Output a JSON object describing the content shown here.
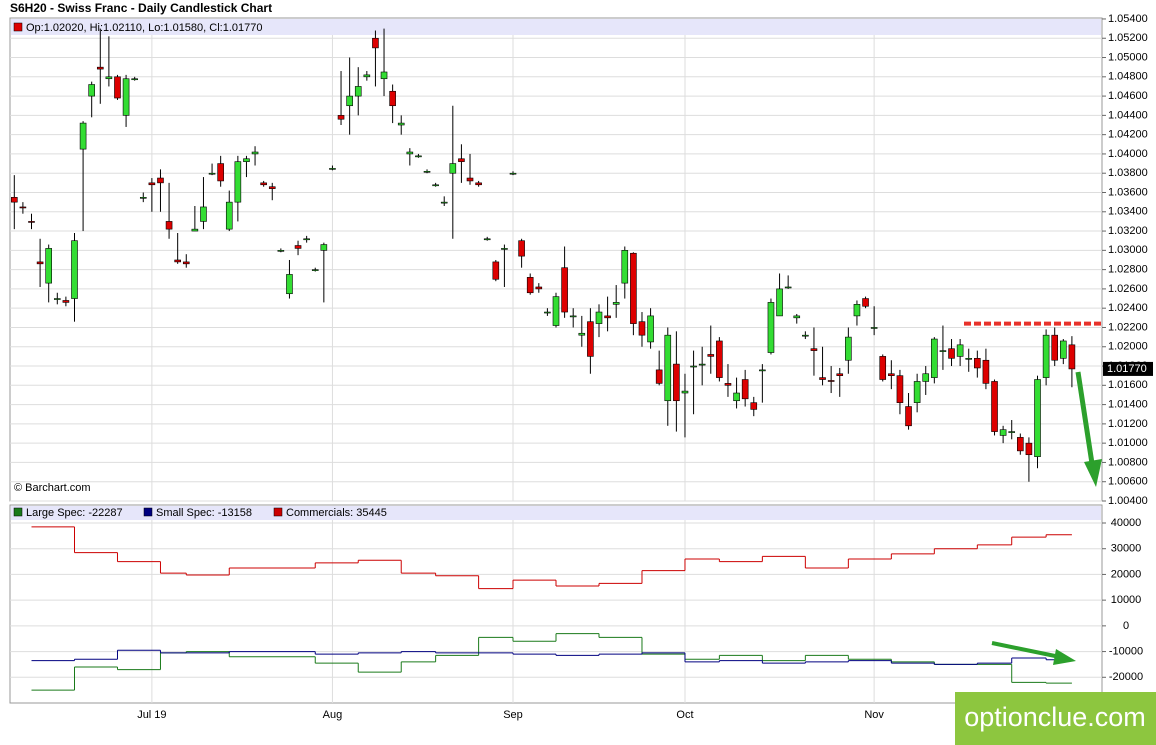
{
  "chart_data": [
    {
      "type": "candlestick",
      "title": "S6H20 - Swiss Franc - Daily Candlestick Chart",
      "legend": "Op:1.02020, Hi:1.02110, Lo:1.01580, Cl:1.01770",
      "credit": "© Barchart.com",
      "watermark": "optionclue.com",
      "last_price_label": "1.01770",
      "resistance": 1.0224,
      "up_color": "#33dd33",
      "down_color": "#dd0000",
      "xlim": [
        -0.5,
        126.5
      ],
      "xticks": [
        {
          "value": 16,
          "label": "Jul 19"
        },
        {
          "value": 37,
          "label": "Aug"
        },
        {
          "value": 58,
          "label": "Sep"
        },
        {
          "value": 78,
          "label": "Oct"
        },
        {
          "value": 100,
          "label": "Nov"
        }
      ],
      "ylim": [
        1.004,
        1.0541
      ],
      "yticks": [
        {
          "value": 1.004,
          "label": "1.00400"
        },
        {
          "value": 1.006,
          "label": "1.00600"
        },
        {
          "value": 1.008,
          "label": "1.00800"
        },
        {
          "value": 1.01,
          "label": "1.01000"
        },
        {
          "value": 1.012,
          "label": "1.01200"
        },
        {
          "value": 1.014,
          "label": "1.01400"
        },
        {
          "value": 1.016,
          "label": "1.01600"
        },
        {
          "value": 1.018,
          "label": "1.01800"
        },
        {
          "value": 1.02,
          "label": "1.02000"
        },
        {
          "value": 1.022,
          "label": "1.02200"
        },
        {
          "value": 1.024,
          "label": "1.02400"
        },
        {
          "value": 1.026,
          "label": "1.02600"
        },
        {
          "value": 1.028,
          "label": "1.02800"
        },
        {
          "value": 1.03,
          "label": "1.03000"
        },
        {
          "value": 1.032,
          "label": "1.03200"
        },
        {
          "value": 1.034,
          "label": "1.03400"
        },
        {
          "value": 1.036,
          "label": "1.03600"
        },
        {
          "value": 1.038,
          "label": "1.03800"
        },
        {
          "value": 1.04,
          "label": "1.04000"
        },
        {
          "value": 1.042,
          "label": "1.04200"
        },
        {
          "value": 1.044,
          "label": "1.04400"
        },
        {
          "value": 1.046,
          "label": "1.04600"
        },
        {
          "value": 1.048,
          "label": "1.04800"
        },
        {
          "value": 1.05,
          "label": "1.05000"
        },
        {
          "value": 1.052,
          "label": "1.05200"
        },
        {
          "value": 1.054,
          "label": "1.05400"
        }
      ],
      "grid": true,
      "candles": [
        [
          1.0355,
          1.0378,
          1.0322,
          1.035
        ],
        [
          1.0345,
          1.035,
          1.0338,
          1.0344
        ],
        [
          1.033,
          1.0338,
          1.0322,
          1.0329
        ],
        [
          1.0288,
          1.0312,
          1.0262,
          1.0286
        ],
        [
          1.0266,
          1.0306,
          1.0246,
          1.0302
        ],
        [
          1.025,
          1.0256,
          1.0244,
          1.025
        ],
        [
          1.0248,
          1.0252,
          1.0242,
          1.0246
        ],
        [
          1.025,
          1.0318,
          1.0226,
          1.031
        ],
        [
          1.0405,
          1.0434,
          1.032,
          1.0432
        ],
        [
          1.046,
          1.0475,
          1.0438,
          1.0472
        ],
        [
          1.049,
          1.053,
          1.0452,
          1.0488
        ],
        [
          1.0478,
          1.0522,
          1.047,
          1.048
        ],
        [
          1.048,
          1.0482,
          1.0456,
          1.0458
        ],
        [
          1.044,
          1.0482,
          1.0428,
          1.0478
        ],
        [
          1.0478,
          1.048,
          1.0476,
          1.0478
        ],
        [
          1.0355,
          1.036,
          1.035,
          1.0355
        ],
        [
          1.037,
          1.0375,
          1.034,
          1.0368
        ],
        [
          1.0375,
          1.0384,
          1.034,
          1.037
        ],
        [
          1.033,
          1.037,
          1.0312,
          1.0322
        ],
        [
          1.029,
          1.0318,
          1.0286,
          1.0288
        ],
        [
          1.0288,
          1.0296,
          1.0282,
          1.0286
        ],
        [
          1.032,
          1.0346,
          1.032,
          1.0322
        ],
        [
          1.033,
          1.0376,
          1.0322,
          1.0345
        ],
        [
          1.038,
          1.039,
          1.0378,
          1.038
        ],
        [
          1.039,
          1.0398,
          1.0366,
          1.0372
        ],
        [
          1.0322,
          1.0362,
          1.032,
          1.035
        ],
        [
          1.035,
          1.0398,
          1.033,
          1.0392
        ],
        [
          1.0392,
          1.0398,
          1.0376,
          1.0395
        ],
        [
          1.04,
          1.0408,
          1.0388,
          1.0402
        ],
        [
          1.037,
          1.0372,
          1.0366,
          1.0368
        ],
        [
          1.0366,
          1.037,
          1.0352,
          1.0364
        ],
        [
          1.03,
          1.0302,
          1.0298,
          1.03
        ],
        [
          1.0255,
          1.029,
          1.025,
          1.0275
        ],
        [
          1.0305,
          1.031,
          1.0295,
          1.0302
        ],
        [
          1.0312,
          1.0315,
          1.0308,
          1.0312
        ],
        [
          1.028,
          1.0282,
          1.0278,
          1.028
        ],
        [
          1.03,
          1.0308,
          1.0246,
          1.0306
        ],
        [
          1.0385,
          1.0388,
          1.0383,
          1.0385
        ],
        [
          1.044,
          1.0486,
          1.043,
          1.0436
        ],
        [
          1.045,
          1.05,
          1.042,
          1.046
        ],
        [
          1.046,
          1.049,
          1.044,
          1.047
        ],
        [
          1.048,
          1.0486,
          1.0476,
          1.0482
        ],
        [
          1.052,
          1.0528,
          1.047,
          1.051
        ],
        [
          1.0478,
          1.053,
          1.046,
          1.0485
        ],
        [
          1.0465,
          1.0472,
          1.0432,
          1.045
        ],
        [
          1.043,
          1.044,
          1.042,
          1.0432
        ],
        [
          1.04,
          1.0406,
          1.0388,
          1.0402
        ],
        [
          1.0398,
          1.04,
          1.0396,
          1.0398
        ],
        [
          1.0382,
          1.0384,
          1.038,
          1.0382
        ],
        [
          1.0368,
          1.037,
          1.0366,
          1.0368
        ],
        [
          1.035,
          1.0356,
          1.0346,
          1.035
        ],
        [
          1.038,
          1.045,
          1.0312,
          1.039
        ],
        [
          1.0395,
          1.041,
          1.037,
          1.0392
        ],
        [
          1.0375,
          1.04,
          1.0368,
          1.0372
        ],
        [
          1.037,
          1.0372,
          1.0366,
          1.0368
        ],
        [
          1.0312,
          1.0314,
          1.031,
          1.0312
        ],
        [
          1.0288,
          1.029,
          1.0268,
          1.027
        ],
        [
          1.0302,
          1.0306,
          1.0262,
          1.0302
        ],
        [
          1.038,
          1.0382,
          1.0378,
          1.038
        ],
        [
          1.031,
          1.0312,
          1.0282,
          1.0294
        ],
        [
          1.0272,
          1.0276,
          1.0254,
          1.0256
        ],
        [
          1.0262,
          1.0266,
          1.0256,
          1.026
        ],
        [
          1.0235,
          1.024,
          1.0232,
          1.0236
        ],
        [
          1.0222,
          1.0256,
          1.022,
          1.0252
        ],
        [
          1.0282,
          1.0304,
          1.023,
          1.0236
        ],
        [
          1.0232,
          1.024,
          1.022,
          1.0232
        ],
        [
          1.0212,
          1.0232,
          1.02,
          1.0214
        ],
        [
          1.0226,
          1.024,
          1.0172,
          1.019
        ],
        [
          1.0224,
          1.0244,
          1.021,
          1.0236
        ],
        [
          1.0232,
          1.0252,
          1.0216,
          1.023
        ],
        [
          1.0244,
          1.0264,
          1.023,
          1.0246
        ],
        [
          1.0266,
          1.0304,
          1.025,
          1.03
        ],
        [
          1.0297,
          1.0298,
          1.0212,
          1.0224
        ],
        [
          1.0226,
          1.0236,
          1.02,
          1.0212
        ],
        [
          1.0205,
          1.024,
          1.0198,
          1.0232
        ],
        [
          1.0176,
          1.0196,
          1.016,
          1.0162
        ],
        [
          1.0144,
          1.022,
          1.0118,
          1.0212
        ],
        [
          1.0182,
          1.0216,
          1.0112,
          1.0144
        ],
        [
          1.0152,
          1.0172,
          1.0106,
          1.0154
        ],
        [
          1.018,
          1.0196,
          1.013,
          1.018
        ],
        [
          1.0182,
          1.02,
          1.016,
          1.0182
        ],
        [
          1.0192,
          1.0222,
          1.0172,
          1.019
        ],
        [
          1.0206,
          1.021,
          1.0164,
          1.0168
        ],
        [
          1.0162,
          1.0182,
          1.0148,
          1.016
        ],
        [
          1.0144,
          1.0168,
          1.0136,
          1.0152
        ],
        [
          1.0166,
          1.0176,
          1.0138,
          1.0146
        ],
        [
          1.0142,
          1.0148,
          1.0128,
          1.0135
        ],
        [
          1.0176,
          1.0182,
          1.0142,
          1.0176
        ],
        [
          1.0194,
          1.025,
          1.0192,
          1.0246
        ],
        [
          1.0232,
          1.0276,
          1.0232,
          1.026
        ],
        [
          1.0262,
          1.0274,
          1.026,
          1.0262
        ],
        [
          1.023,
          1.0234,
          1.0224,
          1.0232
        ],
        [
          1.0212,
          1.0216,
          1.0208,
          1.0212
        ],
        [
          1.0198,
          1.022,
          1.017,
          1.0196
        ],
        [
          1.0168,
          1.02,
          1.016,
          1.0166
        ],
        [
          1.0165,
          1.018,
          1.0152,
          1.0164
        ],
        [
          1.0172,
          1.0178,
          1.0148,
          1.017
        ],
        [
          1.0186,
          1.022,
          1.0172,
          1.021
        ],
        [
          1.0232,
          1.0248,
          1.0222,
          1.0244
        ],
        [
          1.025,
          1.0252,
          1.024,
          1.0242
        ],
        [
          1.022,
          1.0242,
          1.0212,
          1.022
        ],
        [
          1.019,
          1.0192,
          1.0164,
          1.0166
        ],
        [
          1.0172,
          1.0186,
          1.0156,
          1.017
        ],
        [
          1.017,
          1.0176,
          1.013,
          1.0142
        ],
        [
          1.0138,
          1.0152,
          1.0114,
          1.0118
        ],
        [
          1.0142,
          1.0172,
          1.0132,
          1.0164
        ],
        [
          1.0164,
          1.018,
          1.015,
          1.0172
        ],
        [
          1.0168,
          1.021,
          1.0162,
          1.0208
        ],
        [
          1.0196,
          1.0222,
          1.0176,
          1.0196
        ],
        [
          1.0198,
          1.0208,
          1.018,
          1.0188
        ],
        [
          1.019,
          1.0208,
          1.018,
          1.0202
        ],
        [
          1.0188,
          1.0198,
          1.0174,
          1.0188
        ],
        [
          1.0188,
          1.0196,
          1.0168,
          1.0178
        ],
        [
          1.0186,
          1.0198,
          1.0156,
          1.0162
        ],
        [
          1.0164,
          1.0166,
          1.0108,
          1.0112
        ],
        [
          1.0108,
          1.0118,
          1.01,
          1.0114
        ],
        [
          1.0112,
          1.0124,
          1.0104,
          1.0112
        ],
        [
          1.0106,
          1.011,
          1.0088,
          1.0092
        ],
        [
          1.01,
          1.0106,
          1.006,
          1.0088
        ],
        [
          1.0086,
          1.017,
          1.0074,
          1.0166
        ],
        [
          1.0168,
          1.0218,
          1.016,
          1.0212
        ],
        [
          1.0212,
          1.022,
          1.018,
          1.0186
        ],
        [
          1.0188,
          1.0208,
          1.0182,
          1.0206
        ],
        [
          1.0202,
          1.0211,
          1.0158,
          1.0177
        ]
      ]
    },
    {
      "type": "line",
      "step": true,
      "ylim": [
        -30000,
        47000
      ],
      "yticks": [
        -20000,
        -10000,
        0,
        10000,
        20000,
        30000,
        40000
      ],
      "grid": true,
      "x": [
        2,
        7,
        12,
        17,
        20,
        25,
        35,
        40,
        45,
        49,
        54,
        58,
        63,
        68,
        73,
        78,
        82,
        87,
        92,
        97,
        102,
        107,
        112,
        116,
        120
      ],
      "series": [
        {
          "name": "Large Spec: -22287",
          "color": "#1a7a1a",
          "values": [
            -25000,
            -16000,
            -17000,
            -10500,
            -10000,
            -12000,
            -14500,
            -18000,
            -14000,
            -11500,
            -4500,
            -6000,
            -3000,
            -4500,
            -11000,
            -13000,
            -11500,
            -13500,
            -11500,
            -13000,
            -14000,
            -15000,
            -15000,
            -22000,
            -22287
          ]
        },
        {
          "name": "Small Spec: -13158",
          "color": "#000080",
          "values": [
            -13500,
            -13000,
            -9500,
            -10500,
            -10500,
            -10000,
            -11000,
            -10500,
            -10000,
            -10500,
            -10500,
            -11000,
            -11500,
            -11000,
            -10500,
            -14000,
            -13500,
            -14500,
            -14000,
            -13500,
            -14500,
            -15000,
            -14500,
            -12500,
            -13158
          ]
        },
        {
          "name": "Commercials: 35445",
          "color": "#cc0000",
          "values": [
            38500,
            28500,
            25000,
            20500,
            19800,
            22500,
            24500,
            25500,
            20500,
            19500,
            14500,
            17800,
            15500,
            16500,
            21500,
            26000,
            25000,
            27000,
            22500,
            26000,
            28000,
            30000,
            31500,
            34500,
            35445
          ]
        }
      ]
    }
  ]
}
